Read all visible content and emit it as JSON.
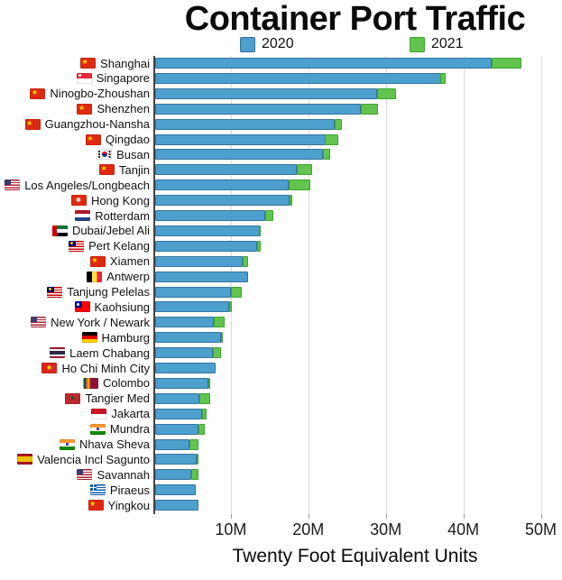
{
  "title": "Container Port Traffic",
  "xlabel": "Twenty Foot Equivalent Units",
  "legend": {
    "items": [
      {
        "label": "2020",
        "color": "#4d9fce"
      },
      {
        "label": "2021",
        "color": "#62c44f"
      }
    ]
  },
  "x_ticks": [
    "10M",
    "20M",
    "30M",
    "40M",
    "50M"
  ],
  "chart_data": {
    "type": "bar",
    "orientation": "horizontal",
    "title": "Container Port Traffic",
    "xlabel": "Twenty Foot Equivalent Units",
    "ylabel": "",
    "unit": "million TEU",
    "xlim": [
      0,
      50
    ],
    "x_tick_labels": [
      "10M",
      "20M",
      "30M",
      "40M",
      "50M"
    ],
    "grid": true,
    "legend_position": "top",
    "bar_style": "stacked-increment (green segment shows 2021 growth beyond 2020)",
    "categories": [
      "Shanghai",
      "Singapore",
      "Ninogbo-Zhoushan",
      "Shenzhen",
      "Guangzhou-Nansha",
      "Qingdao",
      "Busan",
      "Tanjin",
      "Los Angeles/Longbeach",
      "Hong Kong",
      "Rotterdam",
      "Dubai/Jebel Ali",
      "Pert Kelang",
      "Xiamen",
      "Antwerp",
      "Tanjung Pelelas",
      "Kaohsiung",
      "New York / Newark",
      "Hamburg",
      "Laem Chabang",
      "Ho Chi Minh City",
      "Colombo",
      "Tangier Med",
      "Jakarta",
      "Mundra",
      "Nhava Sheva",
      "Valencia Incl Sagunto",
      "Savannah",
      "Piraeus",
      "Yingkou"
    ],
    "flags": [
      "cn",
      "sg",
      "cn",
      "cn",
      "cn",
      "cn",
      "kr",
      "cn",
      "us",
      "hk",
      "nl",
      "ae",
      "my",
      "cn",
      "be",
      "my",
      "tw",
      "us",
      "de",
      "th",
      "vn",
      "lk",
      "ma",
      "id",
      "in",
      "in",
      "es",
      "us",
      "gr",
      "cn"
    ],
    "series": [
      {
        "name": "2020",
        "color": "#4d9fce",
        "values": [
          43.5,
          36.9,
          28.7,
          26.6,
          23.2,
          22.0,
          21.7,
          18.3,
          17.3,
          17.4,
          14.3,
          13.5,
          13.2,
          11.4,
          12.0,
          9.8,
          9.6,
          7.6,
          8.5,
          7.5,
          7.9,
          6.9,
          5.8,
          6.1,
          5.6,
          4.5,
          5.4,
          4.7,
          5.3,
          5.6
        ]
      },
      {
        "name": "2021",
        "color": "#62c44f",
        "values": [
          47.3,
          37.5,
          31.1,
          28.8,
          24.2,
          23.7,
          22.7,
          20.3,
          20.1,
          17.8,
          15.3,
          13.7,
          13.7,
          12.0,
          12.0,
          11.2,
          9.9,
          9.0,
          8.7,
          8.5,
          7.9,
          7.2,
          7.2,
          6.7,
          6.5,
          5.6,
          5.6,
          5.6,
          5.3,
          5.2
        ]
      }
    ]
  }
}
